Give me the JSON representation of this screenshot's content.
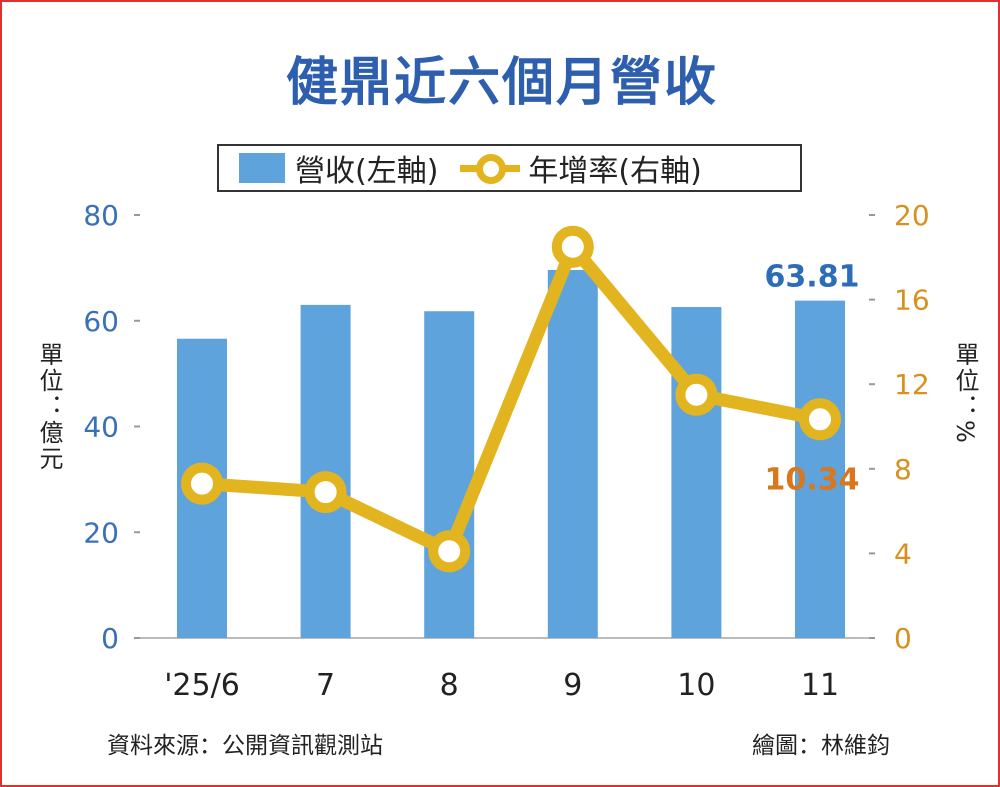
{
  "chart_data": {
    "type": "bar+line",
    "title": "健鼎近六個月營收",
    "categories": [
      "'25/6",
      "7",
      "8",
      "9",
      "10",
      "11"
    ],
    "series": [
      {
        "name": "營收(左軸)",
        "type": "bar",
        "axis": "left",
        "values": [
          56.6,
          63.0,
          61.8,
          69.6,
          62.6,
          63.81
        ],
        "color": "#5fa3dd"
      },
      {
        "name": "年增率(右軸)",
        "type": "line",
        "axis": "right",
        "values": [
          7.3,
          6.9,
          4.1,
          18.5,
          11.5,
          10.34
        ],
        "color": "#e2b41f"
      }
    ],
    "left_axis": {
      "label": "單位：億元",
      "ylim": [
        0,
        80
      ],
      "ticks": [
        "0",
        "20",
        "40",
        "60",
        "80"
      ],
      "color": "#3a70b8"
    },
    "right_axis": {
      "label": "單位：%",
      "ylim": [
        0,
        20
      ],
      "ticks": [
        "0",
        "4",
        "8",
        "12",
        "16",
        "20"
      ],
      "color": "#d9901e"
    },
    "annotations": {
      "bar_last": "63.81",
      "line_last": "10.34"
    },
    "legend": {
      "placement": "top",
      "bar_label": "營收(左軸)",
      "line_label": "年增率(右軸)"
    }
  },
  "footer": {
    "source": "資料來源：公開資訊觀測站",
    "credit": "繪圖：林維鈞"
  }
}
